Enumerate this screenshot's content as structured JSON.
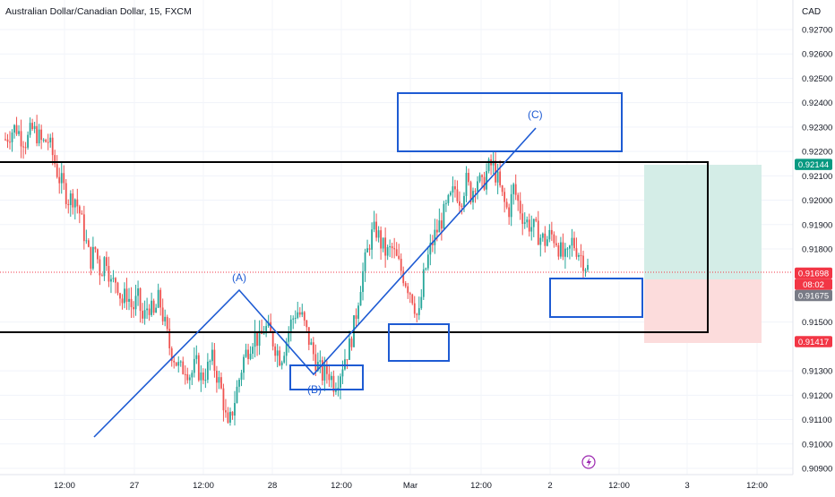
{
  "header": {
    "title": "Australian Dollar/Canadian Dollar, 15, FXCM"
  },
  "chart_data": {
    "type": "candlestick",
    "currency": "CAD",
    "ylim": [
      0.9088,
      0.928
    ],
    "x_ticks": [
      "12:00",
      "27",
      "12:00",
      "28",
      "12:00",
      "Mar",
      "12:00",
      "2",
      "12:00",
      "3",
      "12:00"
    ],
    "y_ticks": [
      "0.92700",
      "0.92600",
      "0.92500",
      "0.92400",
      "0.92300",
      "0.92200",
      "0.92100",
      "0.92000",
      "0.91900",
      "0.91800",
      "0.91500",
      "0.91300",
      "0.91200",
      "0.91100",
      "0.91000",
      "0.90900"
    ],
    "y_tick_values": [
      0.927,
      0.926,
      0.925,
      0.924,
      0.923,
      0.922,
      0.921,
      0.92,
      0.919,
      0.918,
      0.915,
      0.913,
      0.912,
      0.911,
      0.91,
      0.909
    ],
    "price_labels": [
      {
        "text": "0.92144",
        "value": 0.92144,
        "color": "#089981"
      },
      {
        "text": "0.91698",
        "value": 0.91698,
        "color": "#f23645"
      },
      {
        "text": "08:02",
        "value": 0.91698,
        "color": "#f23645"
      },
      {
        "text": "0.91675",
        "value": 0.91675,
        "color": "#787b86"
      },
      {
        "text": "0.91417",
        "value": 0.91417,
        "color": "#f23645"
      }
    ],
    "colors": {
      "up": "#26a69a",
      "down": "#ef5350",
      "wave": "#1e5bd3",
      "box": "#000000",
      "tp_zone": "#d4ede7",
      "sl_zone": "#fcdcdc"
    },
    "annotations": [
      {
        "label": "(A)"
      },
      {
        "label": "(B)"
      },
      {
        "label": "(C)"
      }
    ],
    "lightning_icon": "lightning-icon",
    "close_path": [
      [
        0.9225,
        0.9228,
        0.923,
        0.9226,
        0.9224,
        0.9229,
        0.9227,
        0.9223,
        0.9225,
        0.9218
      ],
      [
        0.921,
        0.9205,
        0.92,
        0.9202,
        0.9195,
        0.9185,
        0.9175,
        0.918,
        0.917,
        0.9178
      ],
      [
        0.9165,
        0.9168,
        0.9158,
        0.9162,
        0.9155,
        0.916,
        0.915,
        0.9158,
        0.9152,
        0.916
      ],
      [
        0.915,
        0.914,
        0.9135,
        0.913,
        0.9132,
        0.9128,
        0.9133,
        0.9127,
        0.913,
        0.9135
      ],
      [
        0.9128,
        0.912,
        0.9105,
        0.9115,
        0.9125,
        0.9135,
        0.914,
        0.9145,
        0.9142,
        0.9148
      ],
      [
        0.9145,
        0.914,
        0.9135,
        0.9142,
        0.915,
        0.9155,
        0.9152,
        0.9145,
        0.9138,
        0.9132
      ],
      [
        0.9128,
        0.913,
        0.9125,
        0.9128,
        0.9135,
        0.914,
        0.915,
        0.9165,
        0.9175,
        0.9185
      ],
      [
        0.9188,
        0.9182,
        0.9178,
        0.918,
        0.9175,
        0.917,
        0.9165,
        0.916,
        0.915,
        0.9168
      ],
      [
        0.9178,
        0.9185,
        0.919,
        0.9195,
        0.92,
        0.9205,
        0.92,
        0.9208,
        0.9202,
        0.921
      ],
      [
        0.9205,
        0.9212,
        0.9215,
        0.9208,
        0.92,
        0.9195,
        0.9205,
        0.9198,
        0.9192,
        0.919
      ],
      [
        0.9188,
        0.9185,
        0.9183,
        0.9186,
        0.9184,
        0.9178,
        0.9175,
        0.9183,
        0.918,
        0.9176
      ],
      [
        0.9172
      ]
    ]
  }
}
